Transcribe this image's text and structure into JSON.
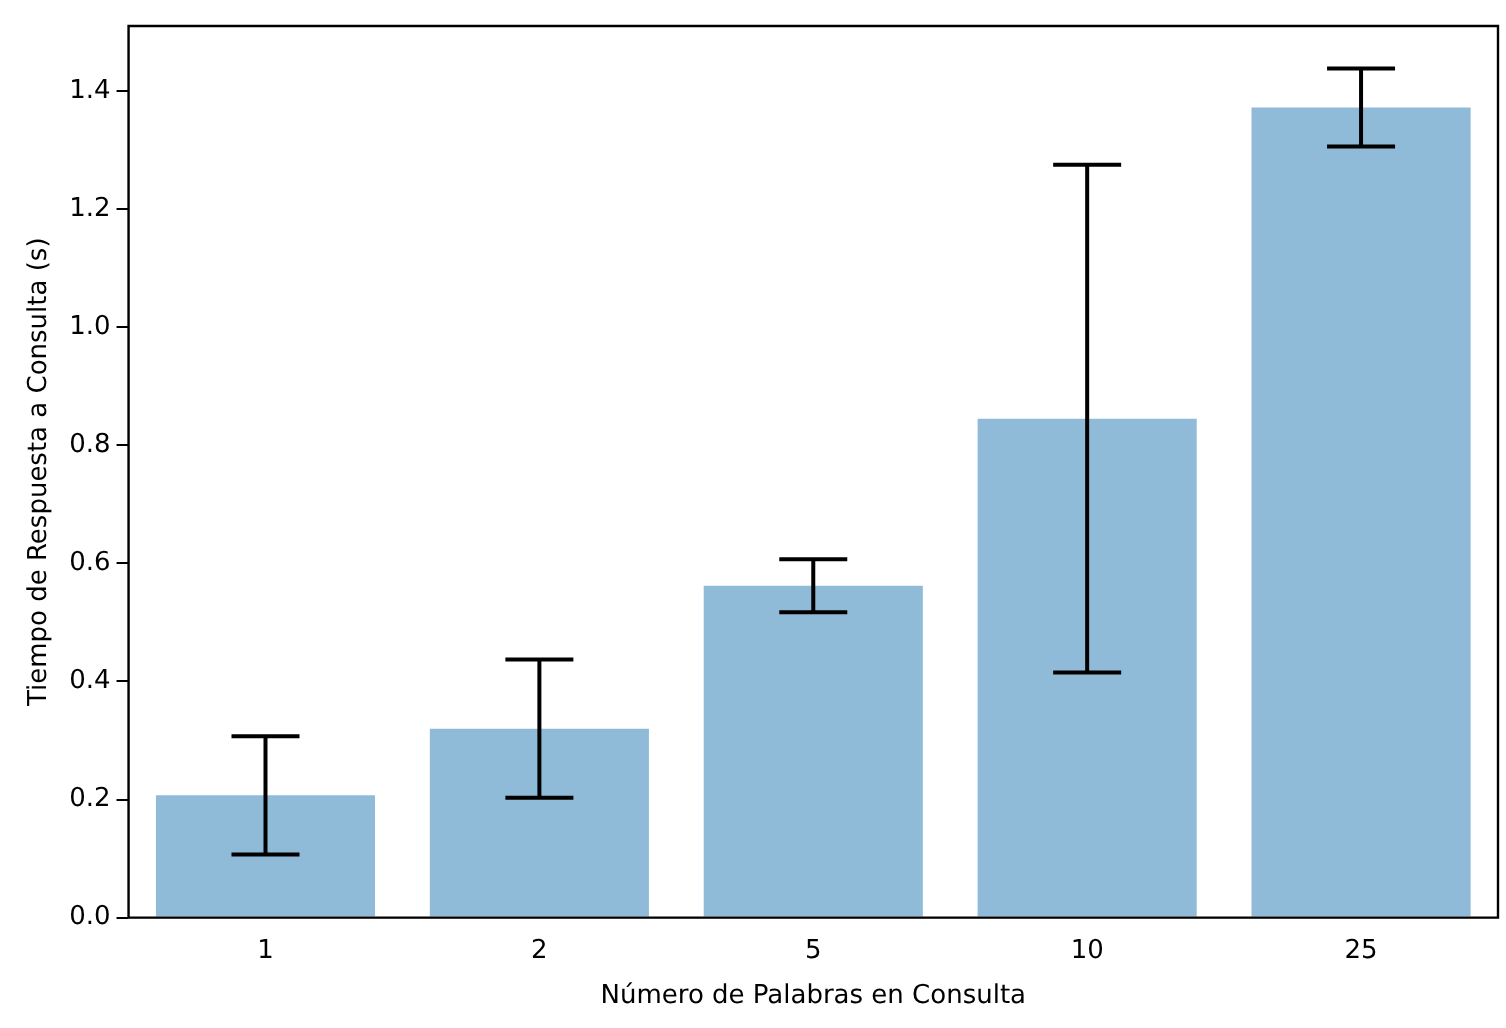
{
  "chart_data": {
    "type": "bar",
    "xlabel": "Número de Palabras en Consulta",
    "ylabel": "Tiempo de Respuesta a Consulta (s)",
    "categories": [
      "1",
      "2",
      "5",
      "10",
      "25"
    ],
    "values": [
      0.207,
      0.32,
      0.562,
      0.845,
      1.372
    ],
    "errors": [
      0.1,
      0.117,
      0.045,
      0.43,
      0.066
    ],
    "color": "#8fbbd9",
    "ylim": [
      0,
      1.51
    ],
    "yticks": [
      {
        "value": 0,
        "label": "0.0"
      },
      0.2,
      0.4,
      0.6,
      0.8,
      {
        "value": 1,
        "label": "1.0"
      },
      1.2,
      1.4
    ],
    "grid": false,
    "legend": false
  }
}
